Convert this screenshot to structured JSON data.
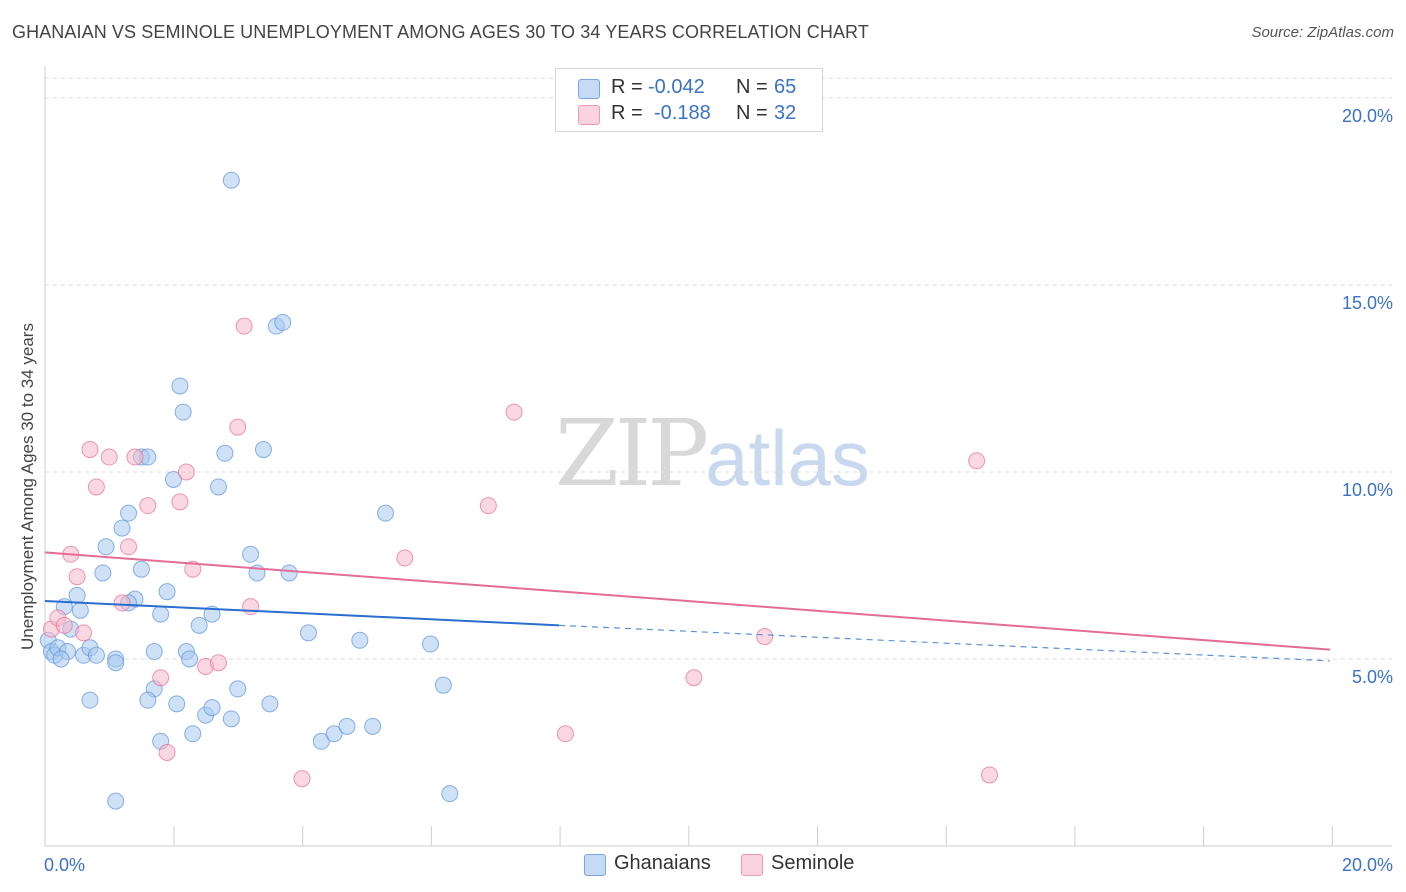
{
  "title": "GHANAIAN VS SEMINOLE UNEMPLOYMENT AMONG AGES 30 TO 34 YEARS CORRELATION CHART",
  "source": "Source: ZipAtlas.com",
  "watermark": {
    "zip": "ZIP",
    "atlas": "atlas"
  },
  "legend": {
    "ghanaians": {
      "r_label": "R =",
      "r_value": "-0.042",
      "n_label": "N =",
      "n_value": "65",
      "color": "#a8c8f0"
    },
    "seminole": {
      "r_label": "R =",
      "r_value": "-0.188",
      "n_label": "N =",
      "n_value": "32",
      "color": "#f5b8c8"
    }
  },
  "bottom_legend": {
    "ghanaians": "Ghanaians",
    "seminole": "Seminole"
  },
  "chart_data": {
    "type": "scatter",
    "title": "GHANAIAN VS SEMINOLE UNEMPLOYMENT AMONG AGES 30 TO 34 YEARS CORRELATION CHART",
    "xlabel": "",
    "ylabel": "Unemployment Among Ages 30 to 34 years",
    "xlim": [
      0,
      20
    ],
    "ylim": [
      0,
      20
    ],
    "x_tick_labels": [
      "0.0%",
      "20.0%"
    ],
    "y_tick_labels": [
      "5.0%",
      "10.0%",
      "15.0%",
      "20.0%"
    ],
    "y_ticks": [
      5,
      10,
      15,
      20
    ],
    "grid": true,
    "series": [
      {
        "name": "Ghanaians",
        "color": "#5b93d9",
        "fill": "#a8c8f0",
        "points": [
          [
            0.05,
            5.5
          ],
          [
            0.1,
            5.2
          ],
          [
            0.15,
            5.1
          ],
          [
            0.2,
            5.3
          ],
          [
            0.3,
            6.4
          ],
          [
            0.4,
            5.8
          ],
          [
            0.5,
            6.7
          ],
          [
            0.6,
            5.1
          ],
          [
            0.7,
            5.3
          ],
          [
            0.8,
            5.1
          ],
          [
            0.9,
            7.3
          ],
          [
            1.1,
            5.0
          ],
          [
            1.2,
            8.5
          ],
          [
            1.3,
            8.9
          ],
          [
            1.4,
            6.6
          ],
          [
            1.5,
            10.4
          ],
          [
            1.5,
            7.4
          ],
          [
            1.6,
            10.4
          ],
          [
            1.7,
            4.2
          ],
          [
            1.8,
            6.2
          ],
          [
            1.9,
            6.8
          ],
          [
            2.0,
            9.8
          ],
          [
            2.1,
            12.3
          ],
          [
            2.15,
            11.6
          ],
          [
            2.2,
            5.2
          ],
          [
            2.3,
            3.0
          ],
          [
            2.4,
            5.9
          ],
          [
            2.5,
            3.5
          ],
          [
            2.6,
            3.7
          ],
          [
            2.7,
            9.6
          ],
          [
            2.8,
            10.5
          ],
          [
            2.9,
            3.4
          ],
          [
            3.0,
            4.2
          ],
          [
            3.2,
            7.8
          ],
          [
            3.3,
            7.3
          ],
          [
            3.4,
            10.6
          ],
          [
            3.5,
            3.8
          ],
          [
            3.6,
            13.9
          ],
          [
            3.7,
            14.0
          ],
          [
            3.8,
            7.3
          ],
          [
            4.1,
            5.7
          ],
          [
            4.3,
            2.8
          ],
          [
            4.5,
            3.0
          ],
          [
            4.7,
            3.2
          ],
          [
            4.9,
            5.5
          ],
          [
            5.1,
            3.2
          ],
          [
            5.3,
            8.9
          ],
          [
            6.0,
            5.4
          ],
          [
            6.2,
            4.3
          ],
          [
            6.3,
            1.4
          ],
          [
            2.9,
            17.8
          ],
          [
            1.1,
            1.2
          ],
          [
            1.8,
            2.8
          ],
          [
            1.6,
            3.9
          ],
          [
            0.7,
            3.9
          ],
          [
            1.3,
            6.5
          ],
          [
            2.6,
            6.2
          ],
          [
            2.25,
            5.0
          ],
          [
            1.1,
            4.9
          ],
          [
            0.35,
            5.2
          ],
          [
            0.25,
            5.0
          ],
          [
            0.55,
            6.3
          ],
          [
            1.7,
            5.2
          ],
          [
            2.05,
            3.8
          ],
          [
            0.95,
            8.0
          ]
        ]
      },
      {
        "name": "Seminole",
        "color": "#e46d95",
        "fill": "#f5b8c8",
        "points": [
          [
            0.1,
            5.8
          ],
          [
            0.2,
            6.1
          ],
          [
            0.3,
            5.9
          ],
          [
            0.4,
            7.8
          ],
          [
            0.5,
            7.2
          ],
          [
            0.7,
            10.6
          ],
          [
            0.8,
            9.6
          ],
          [
            1.0,
            10.4
          ],
          [
            1.2,
            6.5
          ],
          [
            1.3,
            8.0
          ],
          [
            1.4,
            10.4
          ],
          [
            1.6,
            9.1
          ],
          [
            1.8,
            4.5
          ],
          [
            1.9,
            2.5
          ],
          [
            2.1,
            9.2
          ],
          [
            2.2,
            10.0
          ],
          [
            2.3,
            7.4
          ],
          [
            2.5,
            4.8
          ],
          [
            2.7,
            4.9
          ],
          [
            3.0,
            11.2
          ],
          [
            3.1,
            13.9
          ],
          [
            3.2,
            6.4
          ],
          [
            4.0,
            1.8
          ],
          [
            5.6,
            7.7
          ],
          [
            6.9,
            9.1
          ],
          [
            7.3,
            11.6
          ],
          [
            8.1,
            3.0
          ],
          [
            10.1,
            4.5
          ],
          [
            11.2,
            5.6
          ],
          [
            14.5,
            10.3
          ],
          [
            14.7,
            1.9
          ],
          [
            0.6,
            5.7
          ]
        ]
      }
    ],
    "trend_lines": [
      {
        "name": "Ghanaians",
        "x": [
          0,
          8
        ],
        "y": [
          6.55,
          5.9
        ],
        "dashed_extension": [
          8,
          20,
          5.9,
          4.95
        ]
      },
      {
        "name": "Seminole",
        "x": [
          0,
          20
        ],
        "y": [
          7.85,
          5.25
        ]
      }
    ]
  }
}
